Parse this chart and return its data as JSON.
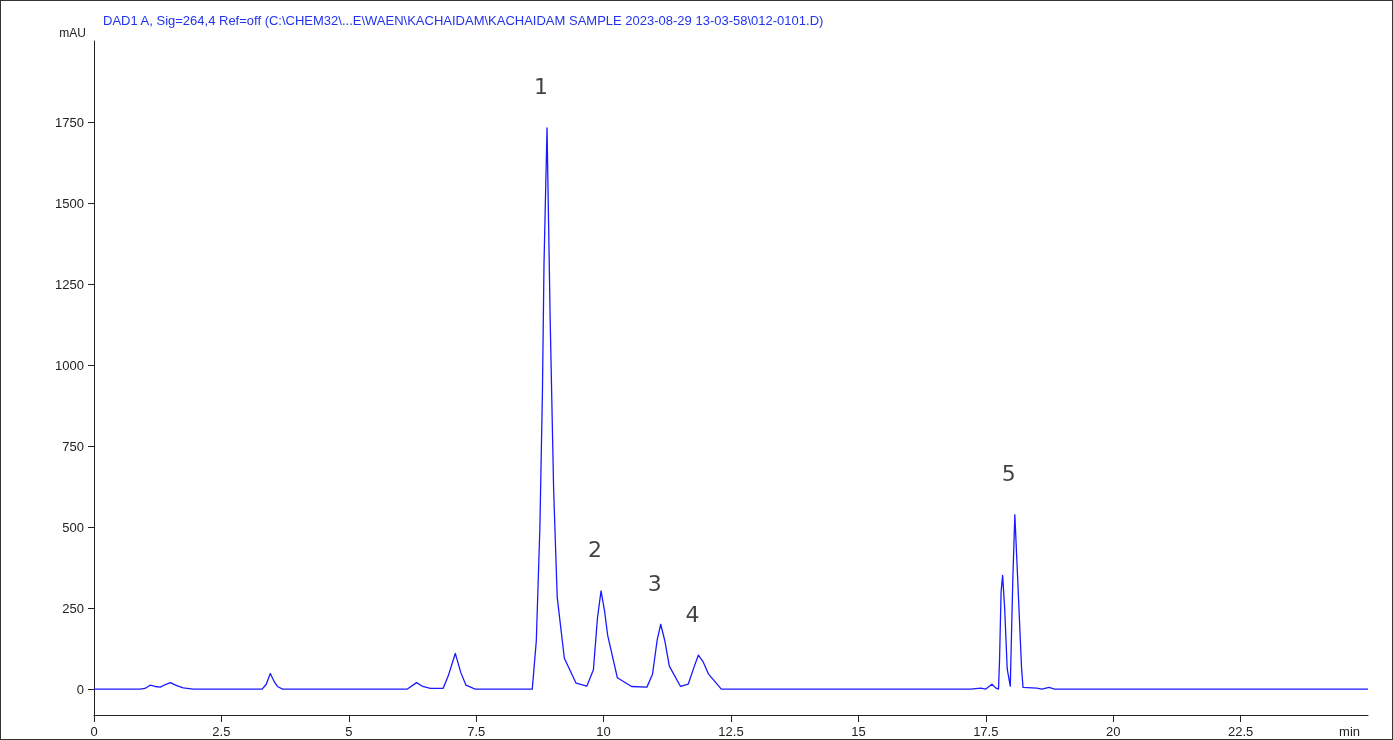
{
  "chart_data": {
    "type": "line",
    "title": "DAD1 A, Sig=264,4 Ref=off (C:\\CHEM32\\...E\\WAEN\\KACHAIDAM\\KACHAIDAM SAMPLE 2023-08-29 13-03-58\\012-0101.D)",
    "xlabel": "min",
    "ylabel": "mAU",
    "x": [
      0,
      0.9,
      1.0,
      1.1,
      1.2,
      1.3,
      1.4,
      1.5,
      1.6,
      1.75,
      1.95,
      3.3,
      3.38,
      3.46,
      3.54,
      3.6,
      3.7,
      6.15,
      6.33,
      6.45,
      6.6,
      6.85,
      6.95,
      7.09,
      7.2,
      7.3,
      7.48,
      8.6,
      8.68,
      8.75,
      8.8,
      8.83,
      8.89,
      8.95,
      9.02,
      9.09,
      9.23,
      9.46,
      9.67,
      9.8,
      9.88,
      9.95,
      10.02,
      10.08,
      10.27,
      10.55,
      10.85,
      10.96,
      11.05,
      11.12,
      11.2,
      11.29,
      11.51,
      11.66,
      11.78,
      11.86,
      11.95,
      12.06,
      12.31,
      17.2,
      17.4,
      17.5,
      17.62,
      17.7,
      17.75,
      17.77,
      17.8,
      17.83,
      17.87,
      17.92,
      17.98,
      18.03,
      18.07,
      18.12,
      18.2,
      18.23,
      18.5,
      18.6,
      18.74,
      18.85,
      25
    ],
    "series": [
      {
        "color": "#1a1aff",
        "values": [
          0,
          0,
          2,
          12,
          8,
          6,
          14,
          20,
          12,
          4,
          0,
          0,
          15,
          48,
          22,
          8,
          0,
          0,
          20,
          8,
          2,
          2,
          40,
          110,
          50,
          12,
          0,
          0,
          150,
          500,
          920,
          1307,
          1732,
          1153,
          612,
          283,
          95,
          18,
          9,
          60,
          220,
          303,
          240,
          166,
          35,
          8,
          6,
          46,
          150,
          200,
          150,
          71,
          8,
          15,
          70,
          105,
          85,
          46,
          0,
          0,
          3,
          0,
          15,
          3,
          0,
          92,
          300,
          351,
          250,
          62,
          9,
          338,
          538,
          360,
          70,
          5,
          3,
          0,
          5,
          0,
          0
        ]
      }
    ],
    "xlim": [
      0,
      25
    ],
    "xticks": [
      0,
      2.5,
      5,
      7.5,
      10,
      12.5,
      15,
      17.5,
      20,
      22.5
    ],
    "ylim": [
      -80,
      2000
    ],
    "yticks": [
      0,
      250,
      500,
      750,
      1000,
      1250,
      1500,
      1750
    ],
    "marker": "none",
    "line_style": "solid",
    "grid": false,
    "annotations": [
      {
        "text": "1",
        "x": 8.89,
        "y": 1732
      },
      {
        "text": "2",
        "x": 9.95,
        "y": 303
      },
      {
        "text": "3",
        "x": 11.12,
        "y": 200
      },
      {
        "text": "4",
        "x": 11.86,
        "y": 105
      },
      {
        "text": "5",
        "x": 18.07,
        "y": 538
      }
    ]
  }
}
